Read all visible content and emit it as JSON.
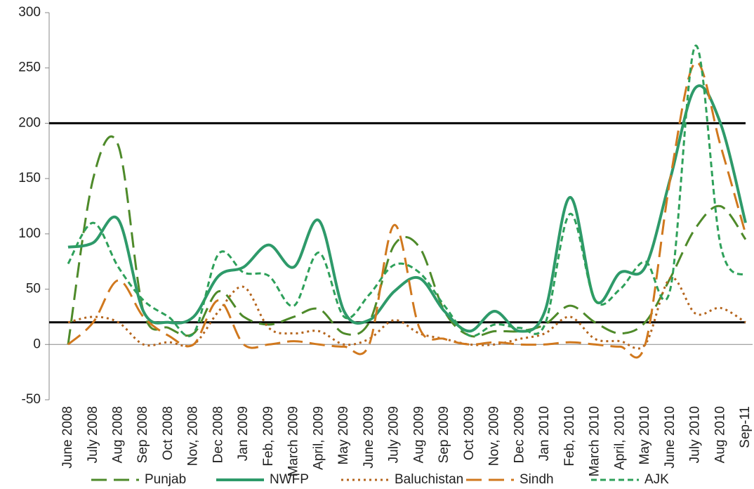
{
  "chart_data": {
    "type": "line",
    "categories": [
      "June 2008",
      "July 2008",
      "Aug 2008",
      "Sep 2008",
      "Oct 2008",
      "Nov, 2008",
      "Dec 2008",
      "Jan 2009",
      "Feb, 2009",
      "March 2009",
      "April, 2009",
      "May 2009",
      "June 2009",
      "July 2009",
      "Aug 2009",
      "Sep 2009",
      "Oct 2009",
      "Nov, 2009",
      "Dec 2009",
      "Jan 2010",
      "Feb, 2010",
      "March 2010",
      "April, 2010",
      "May 2010",
      "June 2010",
      "July 2010",
      "Aug 2010",
      "Sep-11"
    ],
    "series": [
      {
        "name": "Punjab",
        "color": "#4e8a2a",
        "dash": "22 10",
        "values": [
          0,
          150,
          180,
          30,
          15,
          10,
          48,
          25,
          18,
          25,
          32,
          10,
          20,
          90,
          88,
          30,
          8,
          12,
          12,
          18,
          35,
          20,
          10,
          20,
          60,
          105,
          125,
          95
        ]
      },
      {
        "name": "NWFP",
        "color": "#2e9a6a",
        "dash": "none",
        "values": [
          88,
          92,
          113,
          30,
          20,
          25,
          62,
          70,
          90,
          70,
          112,
          30,
          22,
          48,
          60,
          30,
          12,
          30,
          12,
          30,
          133,
          40,
          65,
          70,
          150,
          232,
          200,
          110
        ]
      },
      {
        "name": "Baluchistan",
        "color": "#b5651d",
        "dash": "3 5",
        "values": [
          20,
          25,
          20,
          0,
          2,
          0,
          30,
          52,
          15,
          10,
          12,
          0,
          5,
          22,
          10,
          5,
          0,
          0,
          5,
          10,
          25,
          5,
          3,
          0,
          60,
          28,
          33,
          20
        ]
      },
      {
        "name": "Sindh",
        "color": "#d0781e",
        "dash": "22 10",
        "values": [
          0,
          20,
          58,
          25,
          8,
          0,
          40,
          0,
          0,
          3,
          0,
          -2,
          0,
          108,
          15,
          5,
          0,
          2,
          0,
          0,
          2,
          0,
          -2,
          0,
          150,
          255,
          180,
          100
        ]
      },
      {
        "name": "AJK",
        "color": "#2ea05a",
        "dash": "8 5",
        "values": [
          73,
          110,
          70,
          40,
          25,
          10,
          82,
          65,
          62,
          35,
          83,
          25,
          45,
          72,
          65,
          35,
          8,
          18,
          15,
          18,
          118,
          40,
          50,
          75,
          50,
          270,
          90,
          62
        ]
      }
    ],
    "reference_lines": [
      200,
      20
    ],
    "ylim": [
      -50,
      300
    ],
    "yticks": [
      -50,
      0,
      50,
      100,
      150,
      200,
      250,
      300
    ]
  }
}
